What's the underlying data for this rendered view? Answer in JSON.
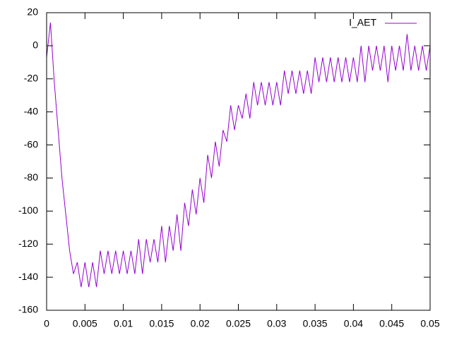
{
  "chart_data": {
    "type": "line",
    "x": [
      0,
      0.0005,
      0.001,
      0.0015,
      0.002,
      0.0025,
      0.003,
      0.0035,
      0.004,
      0.0045,
      0.005,
      0.0055,
      0.006,
      0.0065,
      0.007,
      0.0075,
      0.008,
      0.0085,
      0.009,
      0.0095,
      0.01,
      0.0105,
      0.011,
      0.0115,
      0.012,
      0.0125,
      0.013,
      0.0135,
      0.014,
      0.0145,
      0.015,
      0.0155,
      0.016,
      0.0165,
      0.017,
      0.0175,
      0.018,
      0.0185,
      0.019,
      0.0195,
      0.02,
      0.0205,
      0.021,
      0.0215,
      0.022,
      0.0225,
      0.023,
      0.0235,
      0.024,
      0.0245,
      0.025,
      0.0255,
      0.026,
      0.0265,
      0.027,
      0.0275,
      0.028,
      0.0285,
      0.029,
      0.0295,
      0.03,
      0.0305,
      0.031,
      0.0315,
      0.032,
      0.0325,
      0.033,
      0.0335,
      0.034,
      0.0345,
      0.035,
      0.0355,
      0.036,
      0.0365,
      0.037,
      0.0375,
      0.038,
      0.0385,
      0.039,
      0.0395,
      0.04,
      0.0405,
      0.041,
      0.0415,
      0.042,
      0.0425,
      0.043,
      0.0435,
      0.044,
      0.0445,
      0.045,
      0.0455,
      0.046,
      0.0465,
      0.047,
      0.0475,
      0.048,
      0.0485,
      0.049,
      0.0495,
      0.05
    ],
    "series": [
      {
        "name": "I_AET",
        "color": "#9400d3",
        "values": [
          -7,
          14,
          -22,
          -51,
          -80,
          -102,
          -124,
          -138,
          -131,
          -146,
          -131,
          -146,
          -131,
          -146,
          -124,
          -138,
          -124,
          -138,
          -124,
          -138,
          -124,
          -138,
          -124,
          -138,
          -117,
          -138,
          -117,
          -131,
          -117,
          -131,
          -109,
          -131,
          -109,
          -124,
          -102,
          -124,
          -95,
          -109,
          -87,
          -102,
          -80,
          -95,
          -66,
          -80,
          -58,
          -73,
          -51,
          -58,
          -36,
          -51,
          -36,
          -44,
          -29,
          -44,
          -22,
          -36,
          -22,
          -36,
          -22,
          -36,
          -22,
          -36,
          -15,
          -29,
          -15,
          -29,
          -15,
          -29,
          -15,
          -29,
          -7,
          -22,
          -7,
          -22,
          -7,
          -22,
          -7,
          -22,
          -7,
          -22,
          -7,
          -22,
          0,
          -22,
          0,
          -15,
          0,
          -15,
          0,
          -22,
          0,
          -15,
          0,
          -15,
          7,
          -15,
          0,
          -15,
          0,
          -15,
          0
        ]
      }
    ],
    "xlim": [
      0,
      0.05
    ],
    "xticks": [
      0,
      0.005,
      0.01,
      0.015,
      0.02,
      0.025,
      0.03,
      0.035,
      0.04,
      0.045,
      0.05
    ],
    "ylim": [
      -160,
      20
    ],
    "yticks": [
      -160,
      -140,
      -120,
      -100,
      -80,
      -60,
      -40,
      -20,
      0,
      20
    ],
    "legend": "top-right"
  }
}
